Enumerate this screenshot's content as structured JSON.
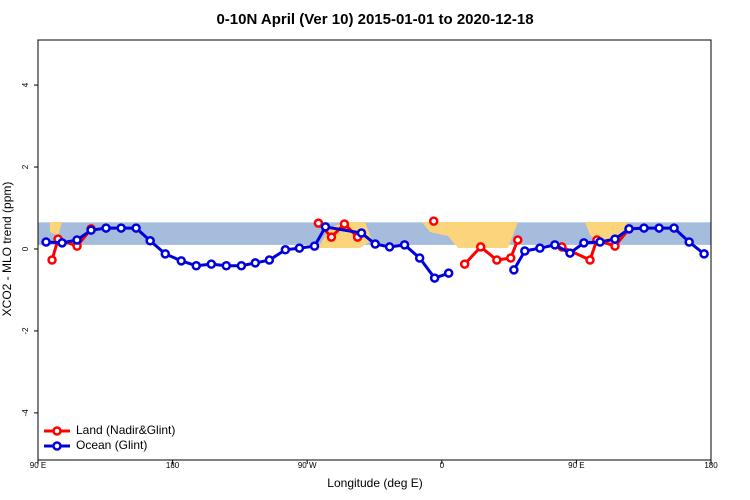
{
  "chart_data": {
    "type": "line",
    "title": "0-10N April (Ver 10)   2015-01-01 to 2020-12-18",
    "xlabel": "Longitude (deg E)",
    "ylabel": "XCO2 - MLO trend (ppm)",
    "xlim": [
      90,
      540
    ],
    "ylim": [
      -5.15,
      5.1
    ],
    "xticks": [
      {
        "value": 90,
        "label": "90 E"
      },
      180,
      {
        "value": 270,
        "label": "90 W"
      },
      {
        "value": 360,
        "label": "0"
      },
      {
        "value": 450,
        "label": "90 E"
      },
      {
        "value": 540,
        "label": "180"
      }
    ],
    "yticks": [
      -4,
      -2,
      0,
      2,
      4
    ],
    "band": [
      0.1,
      0.65
    ],
    "band_color": "#a5bcdc",
    "land_color": "#fcd47c",
    "legend": "bottom-left",
    "series": [
      {
        "name": "Land (Nadir&Glint)",
        "color": "#ff0000",
        "x": [
          99.4,
          103.4,
          116.1,
          125.5,
          null,
          277.5,
          286.2,
          294.9,
          303.7,
          null,
          354.6,
          null,
          375.3,
          386.0,
          396.8,
          406.1,
          410.8,
          null,
          440.3,
          459.1,
          463.7,
          475.8,
          485.2
        ],
        "values": [
          -0.27,
          0.24,
          0.07,
          0.49,
          null,
          0.63,
          0.29,
          0.61,
          0.29,
          null,
          0.68,
          null,
          -0.37,
          0.05,
          -0.27,
          -0.22,
          0.22,
          null,
          0.05,
          -0.27,
          0.22,
          0.07,
          0.49
        ]
      },
      {
        "name": "Ocean (Glint)",
        "color": "#0000dd",
        "x": [
          95.4,
          106.1,
          116.1,
          125.5,
          135.5,
          145.6,
          155.6,
          165.0,
          175.1,
          185.8,
          195.8,
          205.9,
          215.9,
          226.0,
          235.3,
          244.7,
          255.4,
          264.8,
          274.9,
          282.2,
          306.3,
          315.5,
          325.1,
          335.1,
          345.2,
          355.2,
          364.6,
          null,
          408.2,
          415.5,
          425.6,
          435.6,
          445.7,
          455.0,
          465.8,
          475.8,
          485.2,
          495.2,
          505.3,
          515.3,
          525.4,
          535.4
        ],
        "values": [
          0.17,
          0.15,
          0.22,
          0.46,
          0.51,
          0.51,
          0.51,
          0.2,
          -0.12,
          -0.29,
          -0.41,
          -0.37,
          -0.41,
          -0.41,
          -0.34,
          -0.27,
          -0.02,
          0.02,
          0.07,
          0.54,
          0.39,
          0.12,
          0.05,
          0.1,
          -0.22,
          -0.71,
          -0.59,
          null,
          -0.51,
          -0.05,
          0.02,
          0.1,
          -0.1,
          0.15,
          0.17,
          0.24,
          0.49,
          0.51,
          0.51,
          0.51,
          0.17,
          -0.12
        ]
      }
    ]
  }
}
